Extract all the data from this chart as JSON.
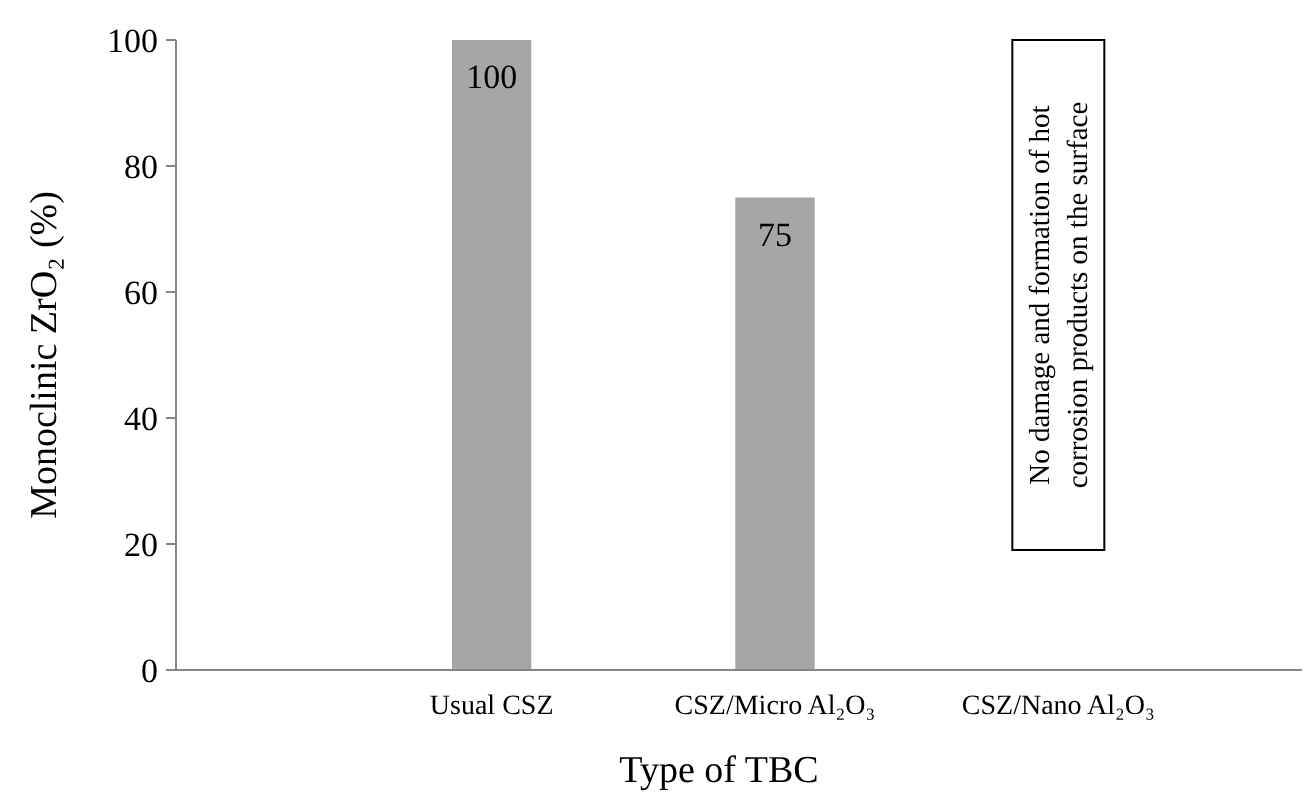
{
  "chart_data": {
    "type": "bar",
    "xlabel": "Type of TBC",
    "ylabel": "Monoclinic ZrO₂ (%)",
    "categories": [
      "Usual CSZ",
      "CSZ/Micro Al₂O₃",
      "CSZ/Nano Al₂O₃"
    ],
    "values": [
      100,
      75,
      null
    ],
    "color": "#a6a6a6",
    "ylim": [
      0,
      100
    ],
    "yticks": [
      0,
      20,
      40,
      60,
      80,
      100
    ],
    "grid": false,
    "data_labels": true,
    "annotations": [
      "No damage and formation of hot\ncorrosion products on the surface"
    ]
  }
}
